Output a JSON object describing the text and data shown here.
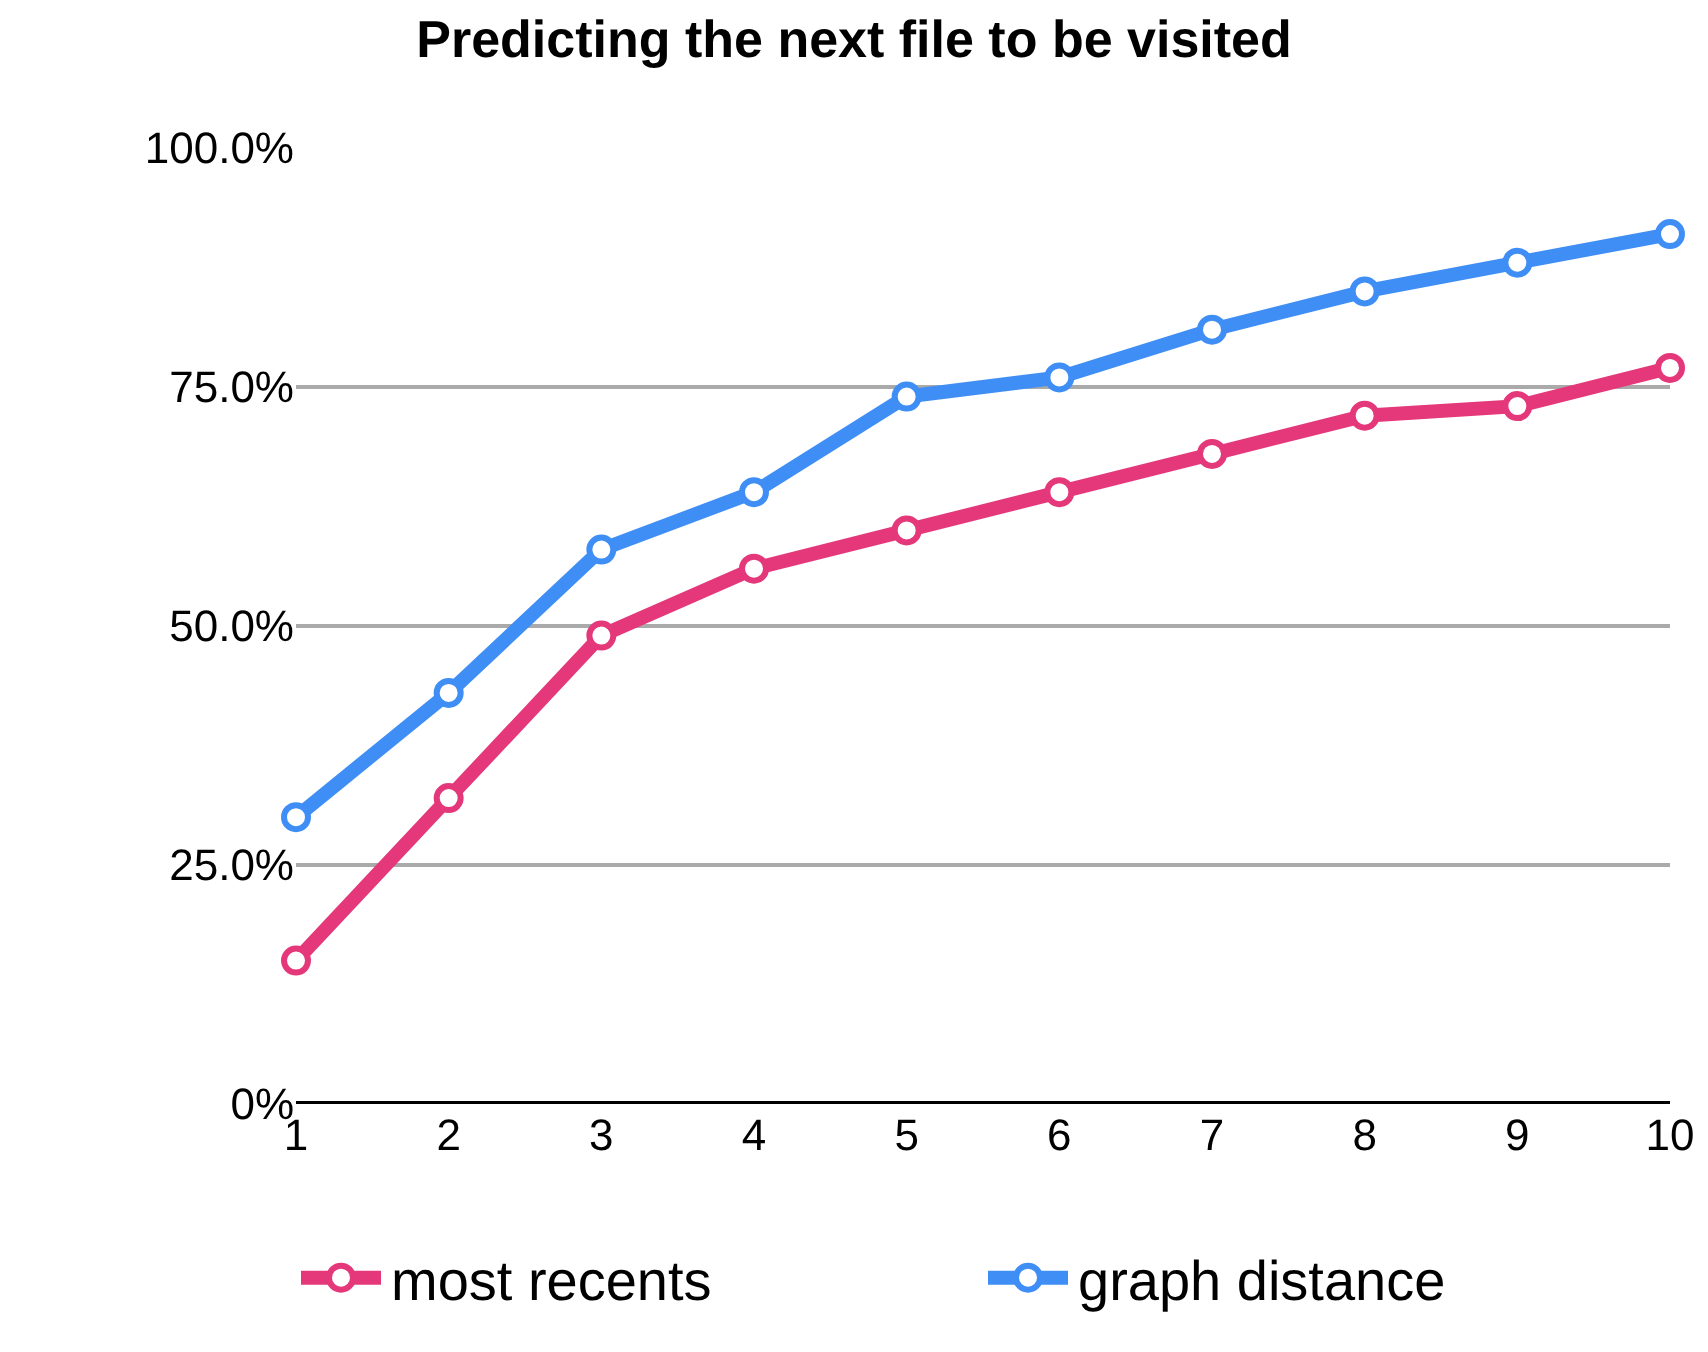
{
  "chart_data": {
    "type": "line",
    "title": "Predicting the next file to be visited",
    "x": [
      1,
      2,
      3,
      4,
      5,
      6,
      7,
      8,
      9,
      10
    ],
    "xlim": [
      1,
      10
    ],
    "xticks": [
      1,
      2,
      3,
      4,
      5,
      6,
      7,
      8,
      9,
      10
    ],
    "ylim": [
      0,
      100
    ],
    "yticks": [
      {
        "value": 0,
        "label": "0%"
      },
      {
        "value": 25,
        "label": "25.0%"
      },
      {
        "value": 50,
        "label": "50.0%"
      },
      {
        "value": 75,
        "label": "75.0%"
      },
      {
        "value": 100,
        "label": "100.0%"
      }
    ],
    "series": [
      {
        "name": "most recents",
        "color": "#e4387a",
        "values": [
          15,
          32,
          49,
          56,
          60,
          64,
          68,
          72,
          73,
          77
        ]
      },
      {
        "name": "graph distance",
        "color": "#3f8ef5",
        "values": [
          30,
          43,
          58,
          64,
          74,
          76,
          81,
          85,
          88,
          91
        ]
      }
    ],
    "grid": "y",
    "legend": "bottom",
    "marker": "circle",
    "line_style": "solid"
  }
}
